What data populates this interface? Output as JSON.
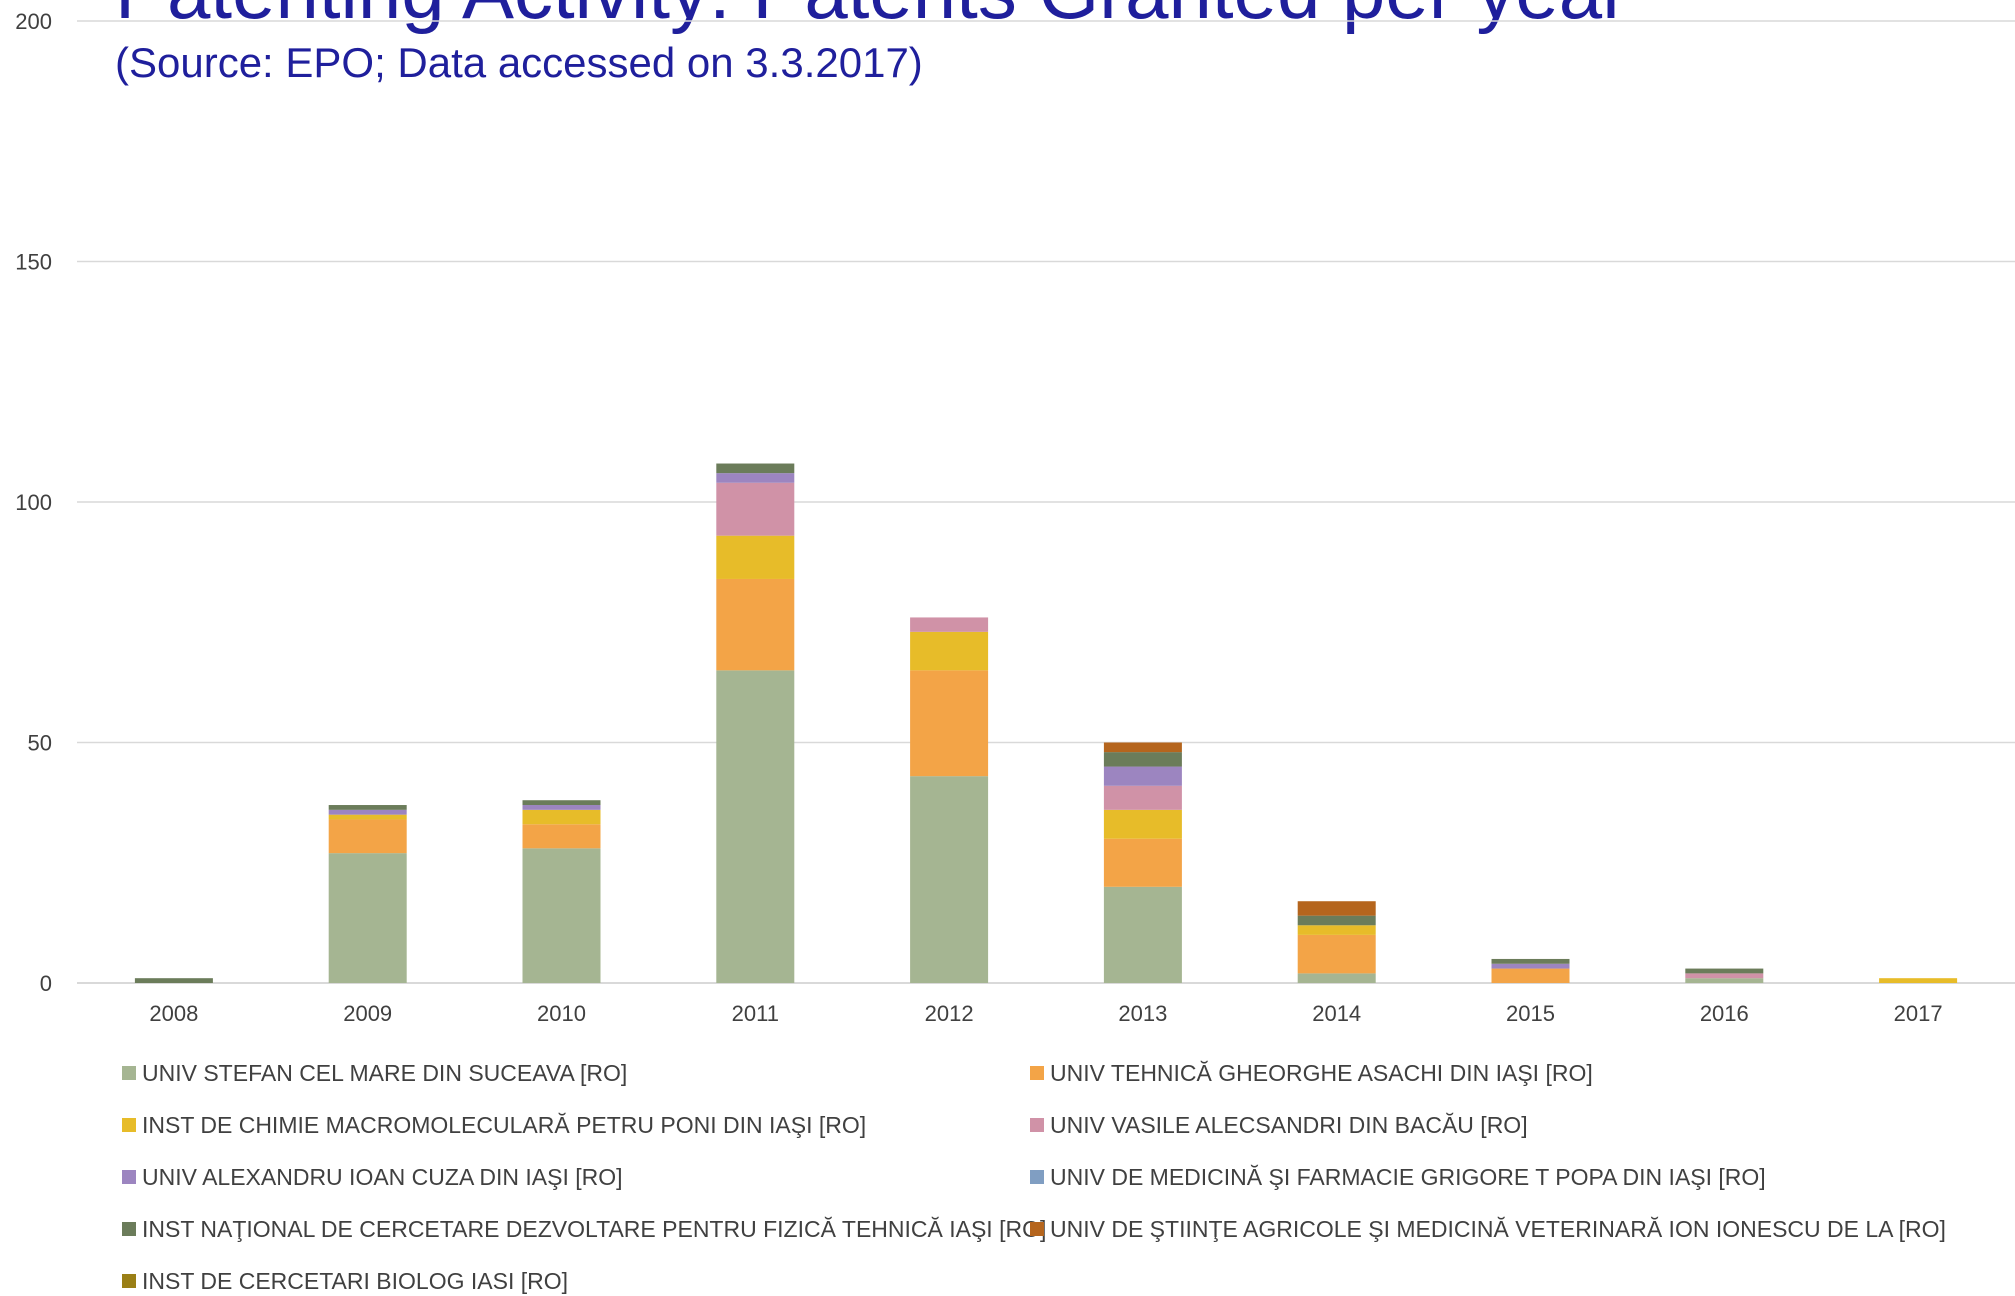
{
  "header": {
    "title": "Patenting Activity: Patents Granted per year",
    "subtitle": "(Source: EPO; Data accessed on 3.3.2017)"
  },
  "colors": {
    "grid": "#d9d9d9",
    "axis_text": "#404040",
    "title": "#1f1f9c"
  },
  "chart_data": {
    "type": "bar",
    "stacked": true,
    "title": "Patenting Activity: Patents Granted per year",
    "subtitle": "(Source: EPO; Data accessed on 3.3.2017)",
    "xlabel": "",
    "ylabel": "",
    "ylim": [
      0,
      200
    ],
    "yticks": [
      0,
      50,
      100,
      150,
      200
    ],
    "grid": true,
    "legend_position": "bottom",
    "categories": [
      "2008",
      "2009",
      "2010",
      "2011",
      "2012",
      "2013",
      "2014",
      "2015",
      "2016",
      "2017"
    ],
    "series": [
      {
        "name": "UNIV STEFAN CEL MARE DIN SUCEAVA  [RO]",
        "color": "#a5b592",
        "values": [
          0,
          27,
          28,
          65,
          43,
          20,
          2,
          0,
          1,
          0
        ]
      },
      {
        "name": "UNIV TEHNICĂ GHEORGHE ASACHI DIN IAŞI  [RO]",
        "color": "#f3a447",
        "values": [
          0,
          7,
          5,
          19,
          22,
          10,
          8,
          3,
          0,
          0
        ]
      },
      {
        "name": "INST DE CHIMIE MACROMOLECULARĂ PETRU PONI DIN IAŞI  [RO]",
        "color": "#e7bc29",
        "values": [
          0,
          1,
          3,
          9,
          8,
          6,
          2,
          0,
          0,
          1
        ]
      },
      {
        "name": "UNIV VASILE ALECSANDRI DIN BACĂU  [RO]",
        "color": "#d092a7",
        "values": [
          0,
          0,
          0,
          11,
          3,
          5,
          0,
          0,
          1,
          0
        ]
      },
      {
        "name": "UNIV ALEXANDRU IOAN CUZA DIN IAŞI  [RO]",
        "color": "#9c85c0",
        "values": [
          0,
          1,
          1,
          2,
          0,
          4,
          0,
          1,
          0,
          0
        ]
      },
      {
        "name": "UNIV DE MEDICINĂ ŞI FARMACIE GRIGORE T POPA DIN IAŞI  [RO]",
        "color": "#809ec2",
        "values": [
          0,
          0,
          0,
          0,
          0,
          0,
          0,
          0,
          0,
          0
        ]
      },
      {
        "name": "INST NAŢIONAL DE CERCETARE DEZVOLTARE PENTRU FIZICĂ TEHNICĂ IAŞI  [RO]",
        "color": "#6b7c5a",
        "values": [
          1,
          1,
          1,
          2,
          0,
          3,
          2,
          1,
          1,
          0
        ]
      },
      {
        "name": "UNIV DE ŞTIINŢE AGRICOLE ŞI MEDICINĂ VETERINARĂ ION IONESCU DE LA  [RO]",
        "color": "#b5651d",
        "values": [
          0,
          0,
          0,
          0,
          0,
          2,
          3,
          0,
          0,
          0
        ]
      },
      {
        "name": "INST DE CERCETARI BIOLOG IASI  [RO]",
        "color": "#9a7f16",
        "values": [
          0,
          0,
          0,
          0,
          0,
          0,
          0,
          0,
          0,
          0
        ]
      }
    ]
  }
}
